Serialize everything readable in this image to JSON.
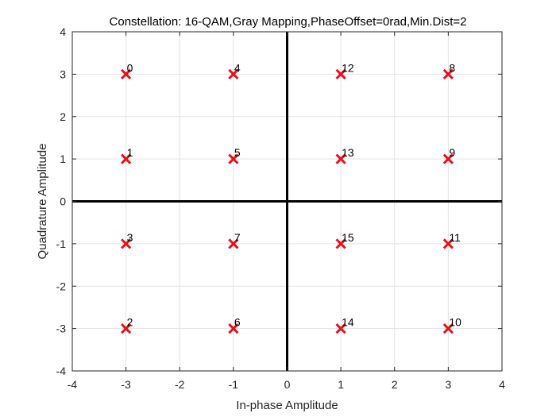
{
  "chart_data": {
    "type": "scatter",
    "title": "Constellation: 16-QAM,Gray Mapping,PhaseOffset=0rad,Min.Dist=2",
    "xlabel": "In-phase Amplitude",
    "ylabel": "Quadrature Amplitude",
    "xlim": [
      -4,
      4
    ],
    "ylim": [
      -4,
      4
    ],
    "xticks": [
      -4,
      -3,
      -2,
      -1,
      0,
      1,
      2,
      3,
      4
    ],
    "yticks": [
      -4,
      -3,
      -2,
      -1,
      0,
      1,
      2,
      3,
      4
    ],
    "grid": true,
    "marker": "x",
    "marker_color": "#e8101b",
    "points": [
      {
        "x": -3,
        "y": 3,
        "label": "0"
      },
      {
        "x": -1,
        "y": 3,
        "label": "4"
      },
      {
        "x": 1,
        "y": 3,
        "label": "12"
      },
      {
        "x": 3,
        "y": 3,
        "label": "8"
      },
      {
        "x": -3,
        "y": 1,
        "label": "1"
      },
      {
        "x": -1,
        "y": 1,
        "label": "5"
      },
      {
        "x": 1,
        "y": 1,
        "label": "13"
      },
      {
        "x": 3,
        "y": 1,
        "label": "9"
      },
      {
        "x": -3,
        "y": -1,
        "label": "3"
      },
      {
        "x": -1,
        "y": -1,
        "label": "7"
      },
      {
        "x": 1,
        "y": -1,
        "label": "15"
      },
      {
        "x": 3,
        "y": -1,
        "label": "11"
      },
      {
        "x": -3,
        "y": -3,
        "label": "2"
      },
      {
        "x": -1,
        "y": -3,
        "label": "6"
      },
      {
        "x": 1,
        "y": -3,
        "label": "14"
      },
      {
        "x": 3,
        "y": -3,
        "label": "10"
      }
    ]
  }
}
